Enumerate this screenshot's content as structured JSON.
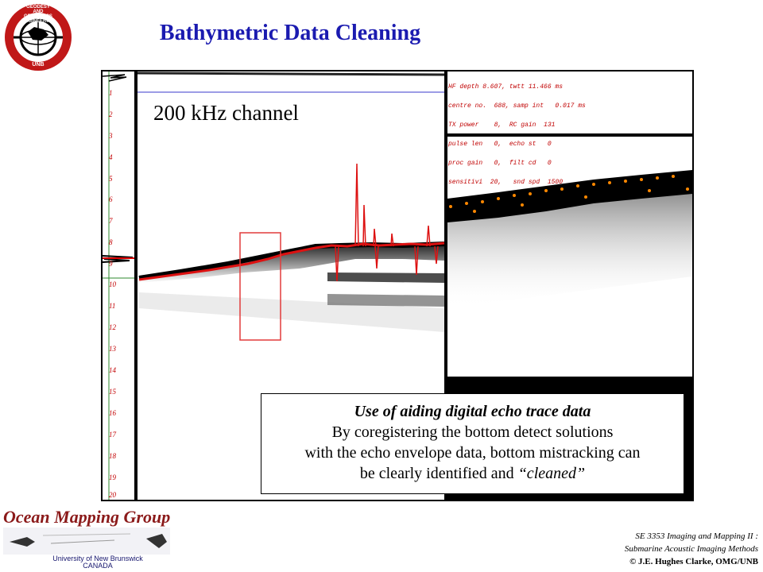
{
  "title": "Bathymetric Data Cleaning",
  "logo": {
    "ring_text": "GEODESY AND GEOMATICS ENGINEERING",
    "bottom_text": "UNB"
  },
  "echogram": {
    "channel_label": "200 kHz channel",
    "depth_ticks": [
      "1",
      "2",
      "3",
      "4",
      "5",
      "6",
      "7",
      "8",
      "9",
      "10",
      "11",
      "12",
      "13",
      "14",
      "15",
      "16",
      "17",
      "18",
      "19",
      "20"
    ],
    "params": [
      "HF depth 8.607, twtt 11.466 ms",
      "centre no.  688, samp int   0.017 ms",
      "TX power    8,  RC gain  131",
      "pulse len   0,  echo st   0",
      "proc gain   0,  filt cd   0",
      "sensitivi  20,   snd spd  1500"
    ]
  },
  "caption": {
    "heading": "Use of aiding digital echo trace data",
    "line1": "By coregistering the bottom detect solutions",
    "line2": "with the echo envelope data, bottom mistracking can",
    "line3_pre": "be clearly identified and ",
    "line3_em": "“cleaned”"
  },
  "footer": {
    "group_name": "Ocean Mapping Group",
    "university": "University of New Brunswick",
    "country": "CANADA",
    "course_line1": "SE 3353 Imaging and Mapping II :",
    "course_line2": "Submarine Acoustic Imaging Methods",
    "copyright": "© J.E. Hughes Clarke, OMG/UNB"
  }
}
